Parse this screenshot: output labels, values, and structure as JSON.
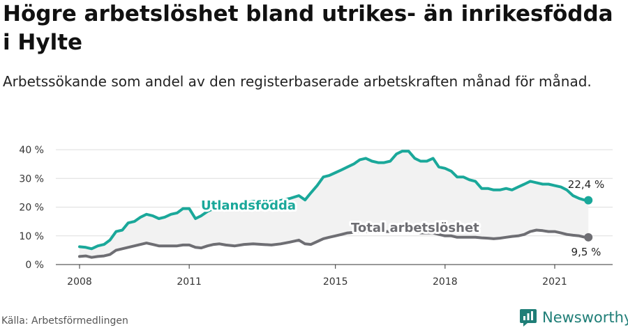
{
  "header": {
    "title": "Högre arbetslöshet bland utrikes- än inrikesfödda i Hylte",
    "subtitle": "Arbetssökande som andel av den registerbaserade arbetskraften månad för månad."
  },
  "footer": {
    "source": "Källa: Arbetsförmedlingen",
    "brand": "Newsworthy"
  },
  "colors": {
    "foreign": "#1aa89a",
    "total": "#6e6e73",
    "band": "#f2f2f2",
    "grid": "#dddddd",
    "brand": "#1f7e77"
  },
  "chart_data": {
    "type": "line",
    "xlim": [
      2008,
      2022.4
    ],
    "ylim": [
      0,
      40
    ],
    "x_ticks": [
      {
        "value": 2008,
        "label": "2008"
      },
      {
        "value": 2011,
        "label": "2011"
      },
      {
        "value": 2015,
        "label": "2015"
      },
      {
        "value": 2018,
        "label": "2018"
      },
      {
        "value": 2021,
        "label": "2021"
      }
    ],
    "y_ticks": [
      {
        "value": 0,
        "label": "0 %"
      },
      {
        "value": 10,
        "label": "10 %"
      },
      {
        "value": 20,
        "label": "20 %"
      },
      {
        "value": 30,
        "label": "30 %"
      },
      {
        "value": 40,
        "label": "40 %"
      }
    ],
    "grid": true,
    "series": [
      {
        "name": "Utlandsfödda",
        "end_label": "22,4 %",
        "x": [
          2008.0,
          2008.17,
          2008.33,
          2008.5,
          2008.67,
          2008.83,
          2009.0,
          2009.17,
          2009.33,
          2009.5,
          2009.67,
          2009.83,
          2010.0,
          2010.17,
          2010.33,
          2010.5,
          2010.67,
          2010.83,
          2011.0,
          2011.17,
          2011.33,
          2011.5,
          2011.67,
          2011.83,
          2012.0,
          2012.25,
          2012.5,
          2012.75,
          2013.0,
          2013.25,
          2013.5,
          2013.75,
          2014.0,
          2014.17,
          2014.33,
          2014.5,
          2014.67,
          2014.83,
          2015.0,
          2015.17,
          2015.33,
          2015.5,
          2015.67,
          2015.83,
          2016.0,
          2016.17,
          2016.33,
          2016.5,
          2016.67,
          2016.83,
          2017.0,
          2017.17,
          2017.33,
          2017.5,
          2017.67,
          2017.83,
          2018.0,
          2018.17,
          2018.33,
          2018.5,
          2018.67,
          2018.83,
          2019.0,
          2019.17,
          2019.33,
          2019.5,
          2019.67,
          2019.83,
          2020.0,
          2020.17,
          2020.33,
          2020.5,
          2020.67,
          2020.83,
          2021.0,
          2021.17,
          2021.33,
          2021.5,
          2021.67,
          2021.83,
          2021.92
        ],
        "y": [
          6.2,
          6.0,
          5.5,
          6.5,
          7.0,
          8.5,
          11.5,
          12.0,
          14.5,
          15.0,
          16.5,
          17.5,
          17.0,
          16.0,
          16.5,
          17.5,
          18.0,
          19.5,
          19.5,
          16.0,
          17.0,
          18.5,
          19.5,
          20.0,
          20.5,
          21.0,
          21.5,
          22.0,
          22.0,
          22.0,
          22.3,
          23.0,
          24.0,
          22.5,
          25.0,
          27.5,
          30.5,
          31.0,
          32.0,
          33.0,
          34.0,
          35.0,
          36.5,
          37.0,
          36.0,
          35.5,
          35.5,
          36.0,
          38.5,
          39.5,
          39.5,
          37.0,
          36.0,
          36.0,
          37.0,
          34.0,
          33.5,
          32.5,
          30.5,
          30.5,
          29.5,
          29.0,
          26.5,
          26.5,
          26.0,
          26.0,
          26.5,
          26.0,
          27.0,
          28.0,
          29.0,
          28.5,
          28.0,
          28.0,
          27.5,
          27.0,
          26.0,
          24.0,
          23.0,
          22.4,
          22.4
        ]
      },
      {
        "name": "Total arbetslöshet",
        "end_label": "9,5 %",
        "x": [
          2008.0,
          2008.17,
          2008.33,
          2008.5,
          2008.67,
          2008.83,
          2009.0,
          2009.17,
          2009.33,
          2009.5,
          2009.67,
          2009.83,
          2010.0,
          2010.17,
          2010.33,
          2010.5,
          2010.67,
          2010.83,
          2011.0,
          2011.17,
          2011.33,
          2011.5,
          2011.67,
          2011.83,
          2012.0,
          2012.25,
          2012.5,
          2012.75,
          2013.0,
          2013.25,
          2013.5,
          2013.75,
          2014.0,
          2014.17,
          2014.33,
          2014.5,
          2014.67,
          2014.83,
          2015.0,
          2015.17,
          2015.33,
          2015.5,
          2015.67,
          2015.83,
          2016.0,
          2016.17,
          2016.33,
          2016.5,
          2016.67,
          2016.83,
          2017.0,
          2017.17,
          2017.33,
          2017.5,
          2017.67,
          2017.83,
          2018.0,
          2018.17,
          2018.33,
          2018.5,
          2018.67,
          2018.83,
          2019.0,
          2019.17,
          2019.33,
          2019.5,
          2019.67,
          2019.83,
          2020.0,
          2020.17,
          2020.33,
          2020.5,
          2020.67,
          2020.83,
          2021.0,
          2021.17,
          2021.33,
          2021.5,
          2021.67,
          2021.83,
          2021.92
        ],
        "y": [
          2.8,
          3.0,
          2.5,
          2.8,
          3.0,
          3.5,
          5.0,
          5.5,
          6.0,
          6.5,
          7.0,
          7.5,
          7.0,
          6.5,
          6.5,
          6.5,
          6.5,
          6.8,
          6.8,
          6.0,
          5.8,
          6.5,
          7.0,
          7.2,
          6.8,
          6.5,
          7.0,
          7.2,
          7.0,
          6.8,
          7.2,
          7.8,
          8.5,
          7.2,
          7.0,
          8.0,
          9.0,
          9.5,
          10.0,
          10.5,
          11.0,
          11.2,
          11.5,
          11.5,
          11.5,
          11.5,
          11.5,
          11.5,
          12.0,
          12.0,
          12.0,
          11.5,
          11.0,
          11.0,
          11.0,
          10.5,
          10.0,
          10.0,
          9.5,
          9.5,
          9.5,
          9.5,
          9.3,
          9.2,
          9.0,
          9.2,
          9.5,
          9.8,
          10.0,
          10.5,
          11.5,
          12.0,
          11.8,
          11.5,
          11.5,
          11.0,
          10.5,
          10.2,
          10.0,
          9.5,
          9.5
        ]
      }
    ]
  }
}
